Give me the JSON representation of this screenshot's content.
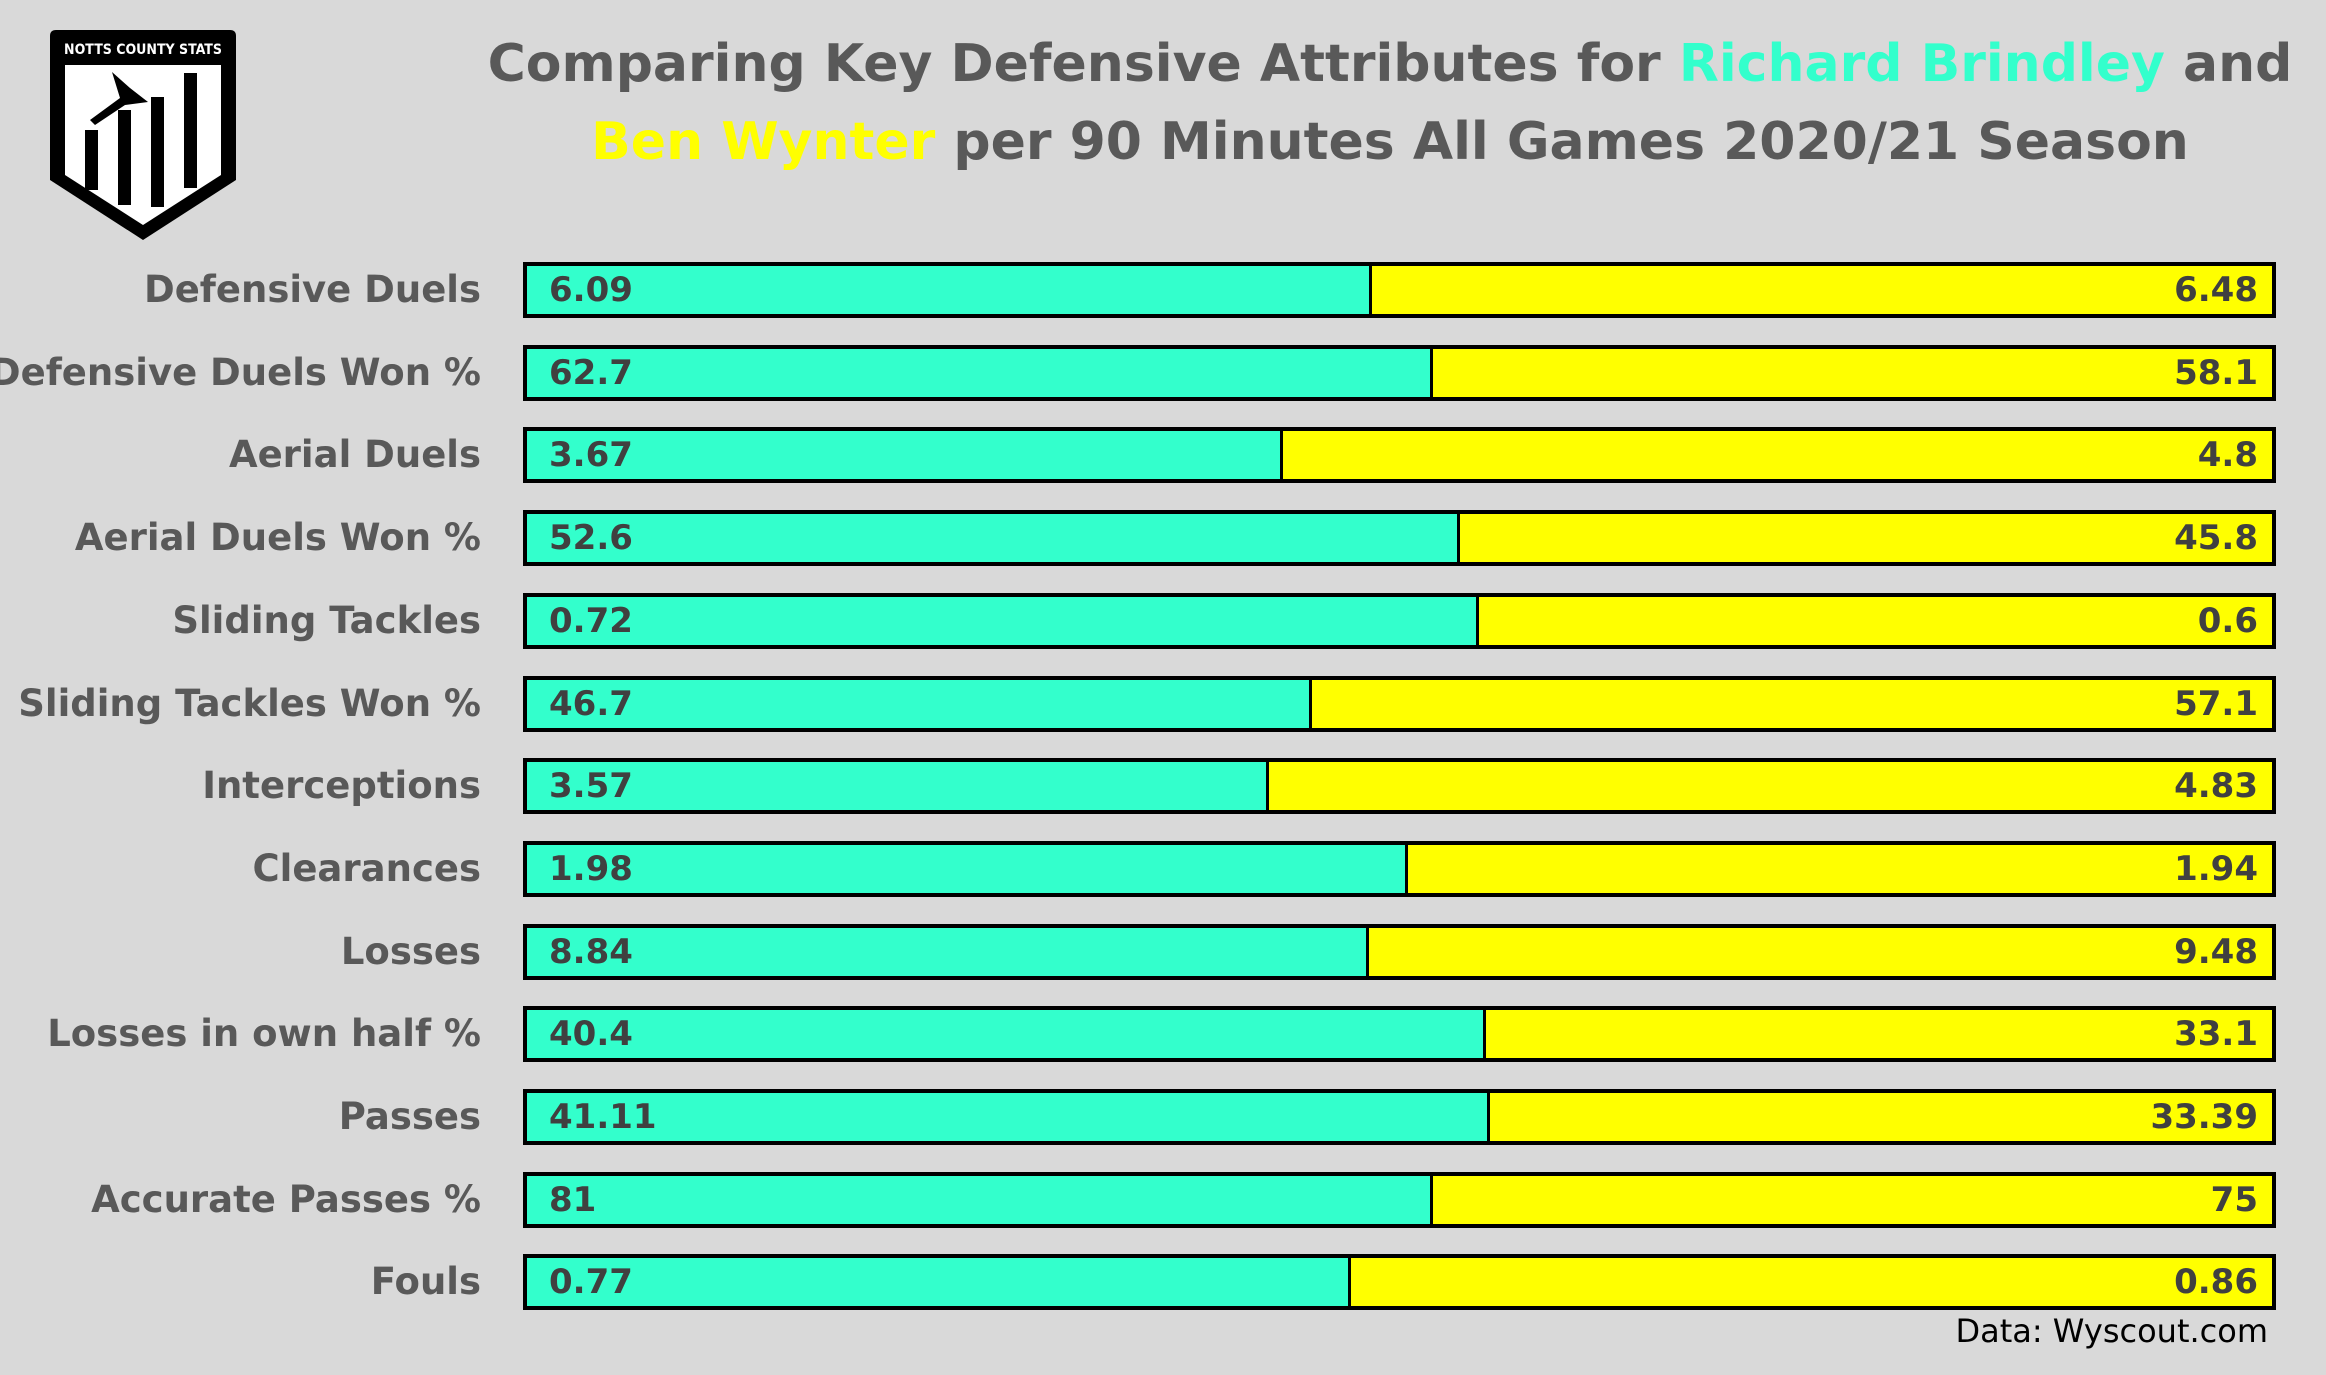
{
  "logo_text": "NOTTS COUNTY STATS",
  "chart_data": {
    "type": "bar",
    "stacked": "100%",
    "orientation": "horizontal",
    "title": {
      "prefix": "Comparing Key Defensive Attributes for ",
      "player1": "Richard Brindley",
      "middle": " and",
      "player2": "Ben Wynter",
      "suffix": " per 90 Minutes All Games 2020/21 Season"
    },
    "categories": [
      "Defensive Duels",
      "Defensive Duels Won %",
      "Aerial Duels",
      "Aerial Duels Won %",
      "Sliding Tackles",
      "Sliding Tackles Won %",
      "Interceptions",
      "Clearances",
      "Losses",
      "Losses in own half %",
      "Passes",
      "Accurate Passes %",
      "Fouls"
    ],
    "series": [
      {
        "name": "Richard Brindley",
        "color": "#33ffcc",
        "values": [
          "6.09",
          "62.7",
          "3.67",
          "52.6",
          "0.72",
          "46.7",
          "3.57",
          "1.98",
          "8.84",
          "40.4",
          "41.11",
          "81",
          "0.77"
        ]
      },
      {
        "name": "Ben Wynter",
        "color": "#ffff00",
        "values": [
          "6.48",
          "58.1",
          "4.8",
          "45.8",
          "0.6",
          "57.1",
          "4.83",
          "1.94",
          "9.48",
          "33.1",
          "33.39",
          "75",
          "0.86"
        ]
      }
    ],
    "source": "Data: Wyscout.com",
    "background": "#d9d9d9"
  }
}
